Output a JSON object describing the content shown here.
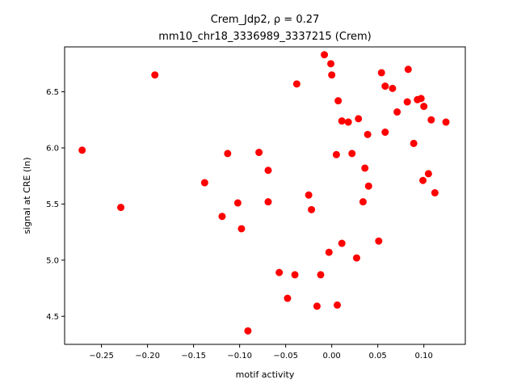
{
  "chart_data": {
    "type": "scatter",
    "title_line1": "Crem_Jdp2, ρ = 0.27",
    "title_line2": "mm10_chr18_3336989_3337215 (Crem)",
    "xlabel": "motif activity",
    "ylabel": "signal at CRE (ln)",
    "xlim": [
      -0.29,
      0.145
    ],
    "ylim": [
      4.25,
      6.9
    ],
    "xticks": [
      -0.25,
      -0.2,
      -0.15,
      -0.1,
      -0.05,
      0.0,
      0.05,
      0.1
    ],
    "xtick_labels": [
      "−0.25",
      "−0.20",
      "−0.15",
      "−0.10",
      "−0.05",
      "0.00",
      "0.05",
      "0.10"
    ],
    "yticks": [
      4.5,
      5.0,
      5.5,
      6.0,
      6.5
    ],
    "ytick_labels": [
      "4.5",
      "5.0",
      "5.5",
      "6.0",
      "6.5"
    ],
    "grid": false,
    "marker_color": "#ff0000",
    "points": [
      {
        "x": -0.271,
        "y": 5.98
      },
      {
        "x": -0.229,
        "y": 5.47
      },
      {
        "x": -0.192,
        "y": 6.65
      },
      {
        "x": -0.138,
        "y": 5.69
      },
      {
        "x": -0.119,
        "y": 5.39
      },
      {
        "x": -0.113,
        "y": 5.95
      },
      {
        "x": -0.102,
        "y": 5.51
      },
      {
        "x": -0.098,
        "y": 5.28
      },
      {
        "x": -0.091,
        "y": 4.37
      },
      {
        "x": -0.079,
        "y": 5.96
      },
      {
        "x": -0.069,
        "y": 5.8
      },
      {
        "x": -0.069,
        "y": 5.52
      },
      {
        "x": -0.057,
        "y": 4.89
      },
      {
        "x": -0.048,
        "y": 4.66
      },
      {
        "x": -0.04,
        "y": 4.87
      },
      {
        "x": -0.038,
        "y": 6.57
      },
      {
        "x": -0.025,
        "y": 5.58
      },
      {
        "x": -0.022,
        "y": 5.45
      },
      {
        "x": -0.016,
        "y": 4.59
      },
      {
        "x": -0.012,
        "y": 4.87
      },
      {
        "x": -0.008,
        "y": 6.83
      },
      {
        "x": -0.003,
        "y": 5.07
      },
      {
        "x": -0.001,
        "y": 6.75
      },
      {
        "x": 0.0,
        "y": 6.65
      },
      {
        "x": 0.005,
        "y": 5.94
      },
      {
        "x": 0.006,
        "y": 4.6
      },
      {
        "x": 0.007,
        "y": 6.42
      },
      {
        "x": 0.011,
        "y": 6.24
      },
      {
        "x": 0.011,
        "y": 5.15
      },
      {
        "x": 0.018,
        "y": 6.23
      },
      {
        "x": 0.022,
        "y": 5.95
      },
      {
        "x": 0.027,
        "y": 5.02
      },
      {
        "x": 0.029,
        "y": 6.26
      },
      {
        "x": 0.034,
        "y": 5.52
      },
      {
        "x": 0.036,
        "y": 5.82
      },
      {
        "x": 0.039,
        "y": 6.12
      },
      {
        "x": 0.04,
        "y": 5.66
      },
      {
        "x": 0.051,
        "y": 5.17
      },
      {
        "x": 0.054,
        "y": 6.67
      },
      {
        "x": 0.058,
        "y": 6.55
      },
      {
        "x": 0.058,
        "y": 6.14
      },
      {
        "x": 0.066,
        "y": 6.53
      },
      {
        "x": 0.071,
        "y": 6.32
      },
      {
        "x": 0.082,
        "y": 6.41
      },
      {
        "x": 0.083,
        "y": 6.7
      },
      {
        "x": 0.089,
        "y": 6.04
      },
      {
        "x": 0.093,
        "y": 6.43
      },
      {
        "x": 0.097,
        "y": 6.44
      },
      {
        "x": 0.099,
        "y": 5.71
      },
      {
        "x": 0.1,
        "y": 6.37
      },
      {
        "x": 0.105,
        "y": 5.77
      },
      {
        "x": 0.108,
        "y": 6.25
      },
      {
        "x": 0.112,
        "y": 5.6
      },
      {
        "x": 0.124,
        "y": 6.23
      }
    ]
  }
}
